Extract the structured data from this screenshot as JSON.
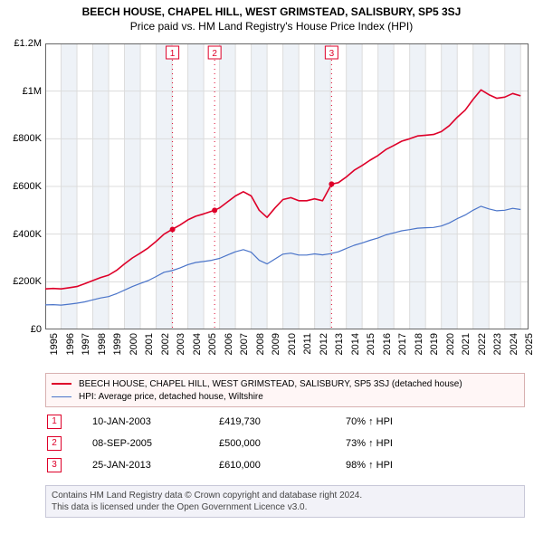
{
  "title_line1": "BEECH HOUSE, CHAPEL HILL, WEST GRIMSTEAD, SALISBURY, SP5 3SJ",
  "title_line2": "Price paid vs. HM Land Registry's House Price Index (HPI)",
  "chart": {
    "type": "line",
    "plot_background": "#ffffff",
    "grid_color": "#dcdcdc",
    "grid_width": 1,
    "axis_color": "#666666",
    "x_years": [
      1995,
      1996,
      1997,
      1998,
      1999,
      2000,
      2001,
      2002,
      2003,
      2004,
      2005,
      2006,
      2007,
      2008,
      2009,
      2010,
      2011,
      2012,
      2013,
      2014,
      2015,
      2016,
      2017,
      2018,
      2019,
      2020,
      2021,
      2022,
      2023,
      2024,
      2025
    ],
    "y_ticks": [
      0,
      200000,
      400000,
      600000,
      800000,
      1000000,
      1200000
    ],
    "y_tick_labels": [
      "£0",
      "£200K",
      "£400K",
      "£600K",
      "£800K",
      "£1M",
      "£1.2M"
    ],
    "ylim": [
      0,
      1200000
    ],
    "xlim_year": [
      1995,
      2025.5
    ],
    "alt_band_color": "#eef2f7",
    "marker_line_color": "#de0029",
    "marker_line_dash": "1,4",
    "marker_box_border": "#de0029",
    "series": [
      {
        "name": "property",
        "label": "BEECH HOUSE, CHAPEL HILL, WEST GRIMSTEAD, SALISBURY, SP5 3SJ (detached house)",
        "color": "#de0029",
        "width": 1.6,
        "sale_dot_radius": 3,
        "data": [
          [
            1995.0,
            170000
          ],
          [
            1995.5,
            172000
          ],
          [
            1996.0,
            170000
          ],
          [
            1996.5,
            175000
          ],
          [
            1997.0,
            180000
          ],
          [
            1997.5,
            192000
          ],
          [
            1998.0,
            205000
          ],
          [
            1998.5,
            218000
          ],
          [
            1999.0,
            228000
          ],
          [
            1999.5,
            248000
          ],
          [
            2000.0,
            275000
          ],
          [
            2000.5,
            300000
          ],
          [
            2001.0,
            320000
          ],
          [
            2001.5,
            342000
          ],
          [
            2002.0,
            370000
          ],
          [
            2002.5,
            400000
          ],
          [
            2003.0,
            419730
          ],
          [
            2003.5,
            438000
          ],
          [
            2004.0,
            460000
          ],
          [
            2004.5,
            475000
          ],
          [
            2005.0,
            485000
          ],
          [
            2005.7,
            500000
          ],
          [
            2006.0,
            510000
          ],
          [
            2006.5,
            535000
          ],
          [
            2007.0,
            560000
          ],
          [
            2007.5,
            578000
          ],
          [
            2008.0,
            560000
          ],
          [
            2008.5,
            500000
          ],
          [
            2009.0,
            470000
          ],
          [
            2009.5,
            510000
          ],
          [
            2010.0,
            545000
          ],
          [
            2010.5,
            553000
          ],
          [
            2011.0,
            540000
          ],
          [
            2011.5,
            540000
          ],
          [
            2012.0,
            548000
          ],
          [
            2012.5,
            540000
          ],
          [
            2013.07,
            610000
          ],
          [
            2013.5,
            616000
          ],
          [
            2014.0,
            640000
          ],
          [
            2014.5,
            668000
          ],
          [
            2015.0,
            688000
          ],
          [
            2015.5,
            710000
          ],
          [
            2016.0,
            730000
          ],
          [
            2016.5,
            755000
          ],
          [
            2017.0,
            772000
          ],
          [
            2017.5,
            790000
          ],
          [
            2018.0,
            800000
          ],
          [
            2018.5,
            812000
          ],
          [
            2019.0,
            815000
          ],
          [
            2019.5,
            818000
          ],
          [
            2020.0,
            830000
          ],
          [
            2020.5,
            855000
          ],
          [
            2021.0,
            890000
          ],
          [
            2021.5,
            920000
          ],
          [
            2022.0,
            965000
          ],
          [
            2022.5,
            1005000
          ],
          [
            2023.0,
            985000
          ],
          [
            2023.5,
            970000
          ],
          [
            2024.0,
            975000
          ],
          [
            2024.5,
            990000
          ],
          [
            2025.0,
            980000
          ]
        ]
      },
      {
        "name": "hpi",
        "label": "HPI: Average price, detached house, Wiltshire",
        "color": "#4a74c9",
        "width": 1.2,
        "data": [
          [
            1995.0,
            103000
          ],
          [
            1995.5,
            104000
          ],
          [
            1996.0,
            102000
          ],
          [
            1996.5,
            106000
          ],
          [
            1997.0,
            110000
          ],
          [
            1997.5,
            116000
          ],
          [
            1998.0,
            124000
          ],
          [
            1998.5,
            132000
          ],
          [
            1999.0,
            138000
          ],
          [
            1999.5,
            150000
          ],
          [
            2000.0,
            165000
          ],
          [
            2000.5,
            180000
          ],
          [
            2001.0,
            193000
          ],
          [
            2001.5,
            205000
          ],
          [
            2002.0,
            222000
          ],
          [
            2002.5,
            240000
          ],
          [
            2003.0,
            247000
          ],
          [
            2003.5,
            258000
          ],
          [
            2004.0,
            272000
          ],
          [
            2004.5,
            281000
          ],
          [
            2005.0,
            285000
          ],
          [
            2005.5,
            290000
          ],
          [
            2006.0,
            298000
          ],
          [
            2006.5,
            312000
          ],
          [
            2007.0,
            326000
          ],
          [
            2007.5,
            335000
          ],
          [
            2008.0,
            324000
          ],
          [
            2008.5,
            290000
          ],
          [
            2009.0,
            275000
          ],
          [
            2009.5,
            296000
          ],
          [
            2010.0,
            316000
          ],
          [
            2010.5,
            320000
          ],
          [
            2011.0,
            312000
          ],
          [
            2011.5,
            312000
          ],
          [
            2012.0,
            317000
          ],
          [
            2012.5,
            313000
          ],
          [
            2013.0,
            318000
          ],
          [
            2013.5,
            326000
          ],
          [
            2014.0,
            340000
          ],
          [
            2014.5,
            353000
          ],
          [
            2015.0,
            363000
          ],
          [
            2015.5,
            374000
          ],
          [
            2016.0,
            384000
          ],
          [
            2016.5,
            397000
          ],
          [
            2017.0,
            405000
          ],
          [
            2017.5,
            414000
          ],
          [
            2018.0,
            419000
          ],
          [
            2018.5,
            425000
          ],
          [
            2019.0,
            427000
          ],
          [
            2019.5,
            428000
          ],
          [
            2020.0,
            434000
          ],
          [
            2020.5,
            447000
          ],
          [
            2021.0,
            465000
          ],
          [
            2021.5,
            480000
          ],
          [
            2022.0,
            500000
          ],
          [
            2022.5,
            517000
          ],
          [
            2023.0,
            506000
          ],
          [
            2023.5,
            498000
          ],
          [
            2024.0,
            500000
          ],
          [
            2024.5,
            508000
          ],
          [
            2025.0,
            503000
          ]
        ]
      }
    ],
    "sale_markers": [
      {
        "n": "1",
        "year": 2003.03
      },
      {
        "n": "2",
        "year": 2005.69
      },
      {
        "n": "3",
        "year": 2013.07
      }
    ],
    "sale_dots": [
      {
        "year": 2003.03,
        "value": 419730
      },
      {
        "year": 2005.69,
        "value": 500000
      },
      {
        "year": 2013.07,
        "value": 610000
      }
    ]
  },
  "legend": {
    "border_color": "#d8b0b0",
    "background": "#fff6f6"
  },
  "transactions": [
    {
      "n": "1",
      "date": "10-JAN-2003",
      "price": "£419,730",
      "rel": "70% ↑ HPI"
    },
    {
      "n": "2",
      "date": "08-SEP-2005",
      "price": "£500,000",
      "rel": "73% ↑ HPI"
    },
    {
      "n": "3",
      "date": "25-JAN-2013",
      "price": "£610,000",
      "rel": "98% ↑ HPI"
    }
  ],
  "footer_line1": "Contains HM Land Registry data © Crown copyright and database right 2024.",
  "footer_line2": "This data is licensed under the Open Government Licence v3.0."
}
